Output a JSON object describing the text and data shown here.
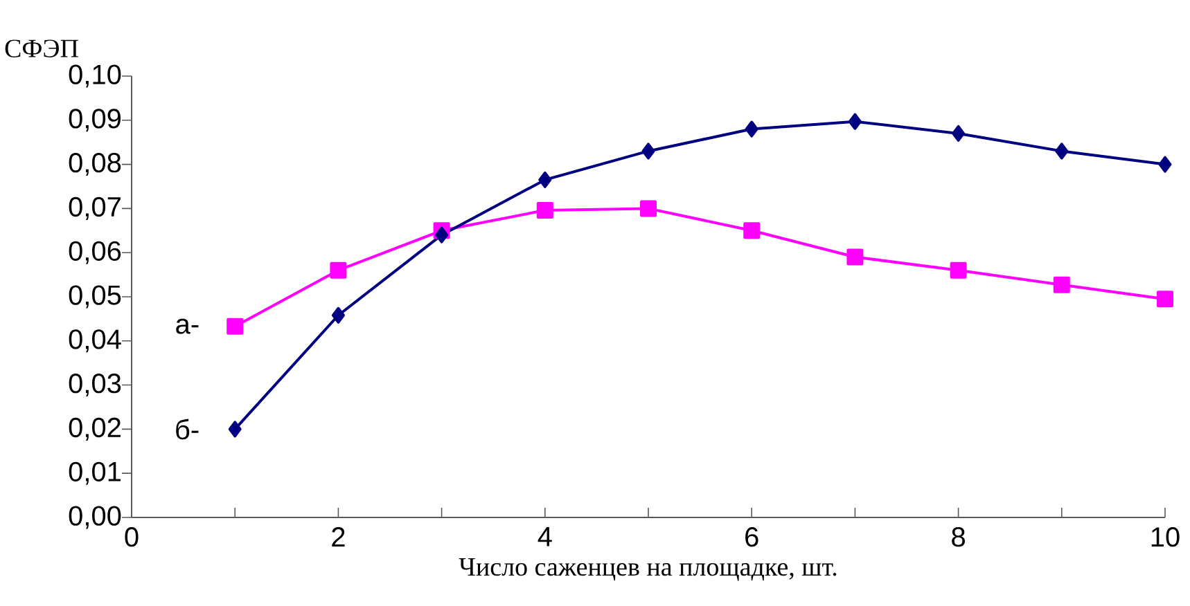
{
  "chart_data": {
    "type": "line",
    "ylabel": "СФЭП",
    "xlabel": "Число саженцев на площадке, шт.",
    "x": [
      1,
      2,
      3,
      4,
      5,
      6,
      7,
      8,
      9,
      10
    ],
    "series": [
      {
        "name": "а-",
        "color": "#ff00ff",
        "marker": "square",
        "values": [
          0.0433,
          0.056,
          0.065,
          0.0696,
          0.07,
          0.065,
          0.059,
          0.056,
          0.0527,
          0.0495
        ]
      },
      {
        "name": "б-",
        "color": "#000080",
        "marker": "diamond",
        "values": [
          0.02,
          0.0458,
          0.064,
          0.0765,
          0.083,
          0.088,
          0.0897,
          0.087,
          0.083,
          0.08
        ]
      }
    ],
    "xlim": [
      0,
      10
    ],
    "xticks": [
      0,
      {
        "value": 1,
        "label": null
      },
      2,
      {
        "value": 3,
        "label": null
      },
      4,
      {
        "value": 5,
        "label": null
      },
      6,
      {
        "value": 7,
        "label": null
      },
      8,
      {
        "value": 9,
        "label": null
      },
      10
    ],
    "ylim": [
      0,
      0.1
    ],
    "yticks": [
      {
        "value": 0,
        "label": "0,00"
      },
      {
        "value": 0.01,
        "label": "0,01"
      },
      {
        "value": 0.02,
        "label": "0,02"
      },
      {
        "value": 0.03,
        "label": "0,03"
      },
      {
        "value": 0.04,
        "label": "0,04"
      },
      {
        "value": 0.05,
        "label": "0,05"
      },
      {
        "value": 0.06,
        "label": "0,06"
      },
      {
        "value": 0.07,
        "label": "0,07"
      },
      {
        "value": 0.08,
        "label": "0,08"
      },
      {
        "value": 0.09,
        "label": "0,09"
      },
      {
        "value": 0.1,
        "label": "0,10"
      }
    ],
    "grid": false,
    "legend": false,
    "line_style": "solid"
  }
}
